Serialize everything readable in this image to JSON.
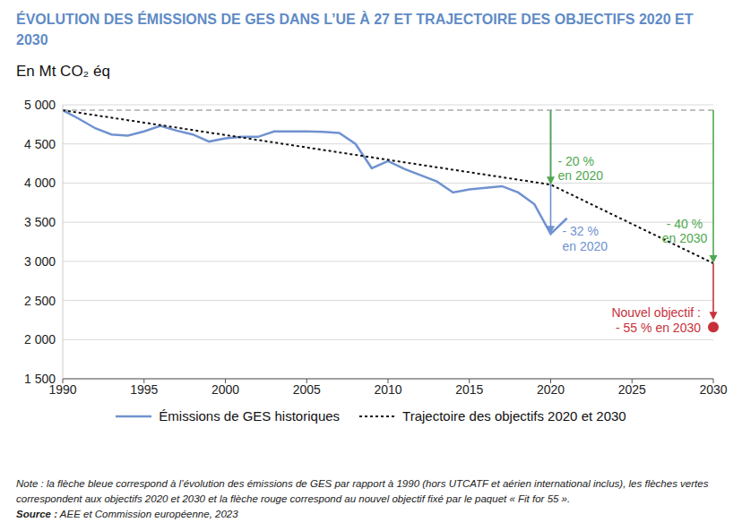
{
  "chart_data": {
    "type": "line",
    "title": "ÉVOLUTION DES ÉMISSIONS DE GES DANS L’UE À 27 ET TRAJECTOIRE DES OBJECTIFS 2020 ET 2030",
    "ylabel": "En Mt CO₂ éq",
    "xlim": [
      1990,
      2030
    ],
    "xticks": [
      1990,
      1995,
      2000,
      2005,
      2010,
      2015,
      2020,
      2025,
      2030
    ],
    "ylim": [
      1500,
      5000
    ],
    "yticks": [
      {
        "value": 1500,
        "label": "1 500"
      },
      {
        "value": 2000,
        "label": "2 000"
      },
      {
        "value": 2500,
        "label": "2 500"
      },
      {
        "value": 3000,
        "label": "3 000"
      },
      {
        "value": 3500,
        "label": "3 500"
      },
      {
        "value": 4000,
        "label": "4 000"
      },
      {
        "value": 4500,
        "label": "4 500"
      },
      {
        "value": 5000,
        "label": "5 000"
      }
    ],
    "grid": true,
    "legend": "bottom",
    "series": [
      {
        "name": "Émissions de GES historiques",
        "color": "#7092d0",
        "line_style": "solid",
        "x": [
          1990,
          1991,
          1992,
          1993,
          1994,
          1995,
          1996,
          1997,
          1998,
          1999,
          2000,
          2001,
          2002,
          2003,
          2004,
          2005,
          2006,
          2007,
          2008,
          2009,
          2010,
          2011,
          2012,
          2013,
          2014,
          2015,
          2016,
          2017,
          2018,
          2019,
          2020,
          2021
        ],
        "values": [
          4930,
          4820,
          4700,
          4620,
          4605,
          4660,
          4730,
          4670,
          4620,
          4530,
          4570,
          4590,
          4590,
          4660,
          4660,
          4660,
          4655,
          4640,
          4500,
          4190,
          4280,
          4180,
          4100,
          4020,
          3880,
          3920,
          3940,
          3960,
          3880,
          3730,
          3350,
          3550
        ]
      },
      {
        "name": "Trajectoire des objectifs 2020 et 2030",
        "color": "#111111",
        "line_style": "dotted",
        "x": [
          1990,
          2020,
          2030
        ],
        "values": [
          4930,
          3980,
          2975
        ]
      }
    ],
    "reference_level": {
      "value": 4930,
      "color": "#aaaaaa",
      "line_style": "dashed"
    },
    "target": {
      "x": 2030,
      "y": 2160,
      "color": "#c8313a"
    },
    "annotations": [
      {
        "text": [
          "- 32 %",
          "en 2020"
        ],
        "x": 2020,
        "from": 4930,
        "to": 3350,
        "color": "#7092d0"
      },
      {
        "text": [
          "- 20 %",
          "en 2020"
        ],
        "x": 2020,
        "from": 4930,
        "to": 3980,
        "color": "#4fa84f"
      },
      {
        "text": [
          "- 40 %",
          "en 2030"
        ],
        "x": 2030,
        "from": 4930,
        "to": 2975,
        "color": "#4fa84f"
      },
      {
        "text": [
          "Nouvel objectif :",
          "- 55 % en 2030"
        ],
        "x": 2030,
        "from": 2975,
        "to": 2160,
        "color": "#c8313a"
      }
    ],
    "note": "Note : la flèche bleue correspond à l’évolution des émissions de GES par rapport à 1990 (hors UTCATF et aérien international inclus), les flèches vertes correspondent aux objectifs 2020 et 2030 et la flèche rouge correspond au nouvel objectif fixé par le paquet « Fit for 55 ».",
    "source_label": "Source :",
    "source": "AEE et Commission européenne, 2023"
  }
}
